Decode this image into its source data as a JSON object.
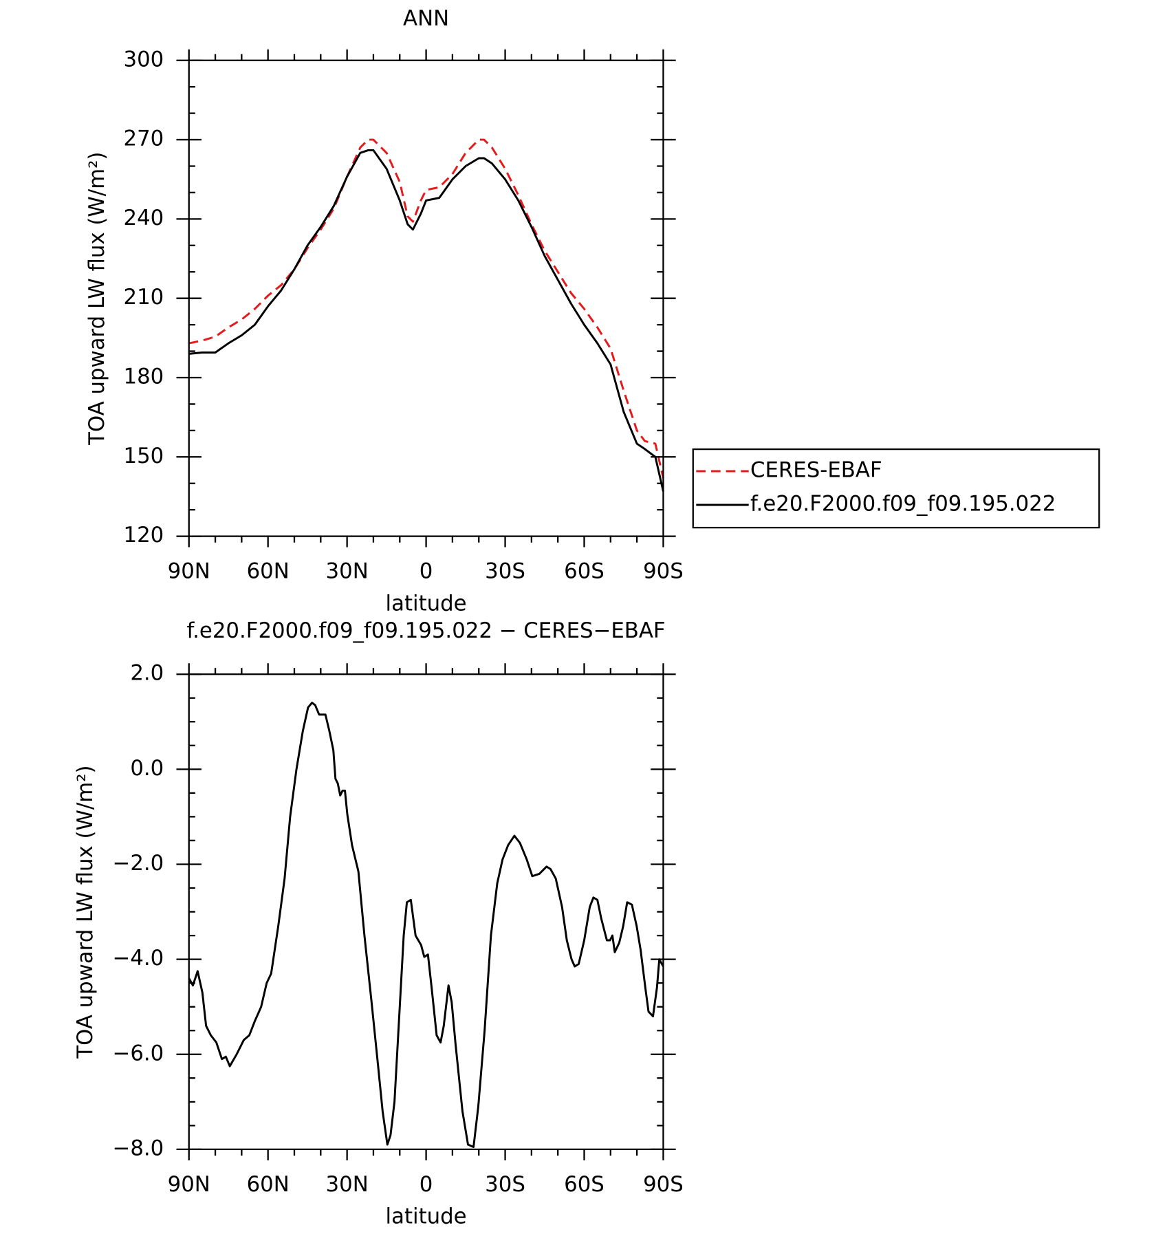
{
  "chart_data": [
    {
      "type": "line",
      "title": "ANN",
      "xlabel": "latitude",
      "ylabel": "TOA upward LW flux (W/m²)",
      "x": [
        90,
        85,
        80,
        75,
        70,
        65,
        60,
        55,
        50,
        45,
        40,
        35,
        30,
        25,
        22,
        20,
        15,
        10,
        7,
        5,
        2,
        0,
        -5,
        -10,
        -15,
        -20,
        -22,
        -25,
        -30,
        -35,
        -40,
        -45,
        -50,
        -55,
        -60,
        -65,
        -70,
        -75,
        -80,
        -83,
        -87,
        -90
      ],
      "series": [
        {
          "name": "CERES-EBAF",
          "color": "#e41a1c",
          "style": "dashed",
          "values": [
            193,
            194,
            195.5,
            199,
            202,
            206,
            211,
            215,
            221,
            229,
            236,
            244,
            256,
            267,
            270,
            270,
            265,
            254,
            241,
            239,
            247,
            251,
            252,
            257,
            265,
            270,
            270,
            267,
            259,
            249,
            238,
            228,
            220,
            212,
            206,
            199,
            191,
            175,
            160,
            156,
            155,
            142
          ]
        },
        {
          "name": "f.e20.F2000.f09_f09.195.022",
          "color": "#000000",
          "style": "solid",
          "values": [
            189,
            189.5,
            189.5,
            193,
            196,
            200,
            207,
            213,
            221,
            230,
            237,
            245,
            256,
            265,
            266,
            266,
            259,
            247,
            238,
            236,
            242,
            247,
            248,
            255,
            260,
            263,
            263,
            261,
            255,
            247,
            237,
            226,
            217,
            208,
            200,
            193,
            185,
            167,
            155,
            153,
            150,
            137
          ]
        }
      ],
      "xlim": [
        90,
        -90
      ],
      "xticks": [
        {
          "value": 90,
          "label": "90N"
        },
        {
          "value": 60,
          "label": "60N"
        },
        {
          "value": 30,
          "label": "30N"
        },
        0,
        {
          "value": -30,
          "label": "30S"
        },
        {
          "value": -60,
          "label": "60S"
        },
        {
          "value": -90,
          "label": "90S"
        }
      ],
      "ylim": [
        120,
        300
      ],
      "yticks": [
        120,
        150,
        180,
        210,
        240,
        270,
        300
      ],
      "legend": "right"
    },
    {
      "type": "line",
      "title": "f.e20.F2000.f09_f09.195.022 − CERES−EBAF",
      "xlabel": "latitude",
      "ylabel": "TOA upward LW flux (W/m²)",
      "x": [
        90,
        88.5,
        86.7,
        84.9,
        83.5,
        81.7,
        79.6,
        77.5,
        76,
        74.5,
        71.9,
        69.2,
        67.1,
        65,
        62.6,
        60.5,
        58.8,
        56.1,
        53.7,
        51.6,
        49.2,
        46.8,
        44.8,
        43.3,
        42.1,
        40.6,
        38.2,
        36.7,
        35.2,
        34.4,
        33.5,
        32.6,
        31.7,
        30.8,
        29.9,
        28.1,
        25.7,
        23.4,
        20.7,
        18.3,
        16.5,
        14.7,
        13.5,
        12,
        10,
        8.5,
        7.3,
        5.8,
        4,
        1.9,
        0.7,
        -0.7,
        -2.1,
        -4,
        -5.5,
        -6.7,
        -8.5,
        -9.7,
        -11.2,
        -13.8,
        -15.9,
        -18,
        -19.8,
        -22.2,
        -24.6,
        -27,
        -29,
        -31.1,
        -33.5,
        -35.6,
        -38.2,
        -40.3,
        -43,
        -45.7,
        -47.2,
        -49.2,
        -51.6,
        -53.4,
        -55.2,
        -56.4,
        -57.9,
        -60,
        -62.1,
        -63.5,
        -65,
        -66.5,
        -68.6,
        -69.8,
        -70.7,
        -71.6,
        -73.3,
        -74.8,
        -76.3,
        -78.1,
        -79.9,
        -81.4,
        -83.2,
        -84.4,
        -86.1,
        -87.6,
        -88.5,
        -90
      ],
      "values": [
        -4.4,
        -4.55,
        -4.25,
        -4.7,
        -5.4,
        -5.6,
        -5.75,
        -6.1,
        -6.05,
        -6.25,
        -6.0,
        -5.7,
        -5.6,
        -5.3,
        -5.0,
        -4.5,
        -4.3,
        -3.3,
        -2.3,
        -1.0,
        0.0,
        0.8,
        1.3,
        1.4,
        1.35,
        1.15,
        1.15,
        0.8,
        0.4,
        -0.2,
        -0.3,
        -0.55,
        -0.45,
        -0.45,
        -0.95,
        -1.6,
        -2.15,
        -3.5,
        -4.9,
        -6.2,
        -7.2,
        -7.9,
        -7.7,
        -7.0,
        -5.0,
        -3.5,
        -2.8,
        -2.75,
        -3.5,
        -3.7,
        -3.95,
        -3.9,
        -4.6,
        -5.6,
        -5.75,
        -5.4,
        -4.55,
        -4.9,
        -5.8,
        -7.2,
        -7.9,
        -7.95,
        -7.1,
        -5.5,
        -3.5,
        -2.4,
        -1.9,
        -1.6,
        -1.4,
        -1.55,
        -1.9,
        -2.25,
        -2.2,
        -2.05,
        -2.1,
        -2.3,
        -2.9,
        -3.6,
        -4.0,
        -4.15,
        -4.1,
        -3.6,
        -2.9,
        -2.7,
        -2.75,
        -3.15,
        -3.6,
        -3.6,
        -3.5,
        -3.85,
        -3.65,
        -3.3,
        -2.8,
        -2.85,
        -3.3,
        -3.8,
        -4.6,
        -5.1,
        -5.2,
        -4.6,
        -4.0,
        -4.15
      ],
      "color": "#000000",
      "xlim": [
        90,
        -90
      ],
      "xticks": [
        {
          "value": 90,
          "label": "90N"
        },
        {
          "value": 60,
          "label": "60N"
        },
        {
          "value": 30,
          "label": "30N"
        },
        0,
        {
          "value": -30,
          "label": "30S"
        },
        {
          "value": -60,
          "label": "60S"
        },
        {
          "value": -90,
          "label": "90S"
        }
      ],
      "ylim": [
        -8,
        2
      ],
      "yticks": [
        {
          "value": -8,
          "label": "−8.0"
        },
        {
          "value": -6,
          "label": "−6.0"
        },
        {
          "value": -4,
          "label": "−4.0"
        },
        {
          "value": -2,
          "label": "−2.0"
        },
        {
          "value": 0,
          "label": "0.0"
        },
        {
          "value": 2,
          "label": "2.0"
        }
      ]
    }
  ]
}
